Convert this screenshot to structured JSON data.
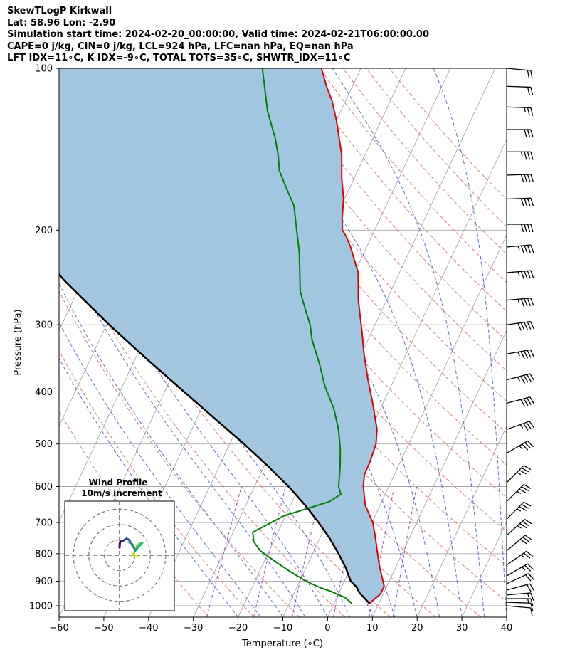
{
  "header": {
    "lines": [
      "SkewTLogP Kirkwall",
      "Lat: 58.96   Lon: -2.90",
      "Simulation start time: 2024-02-20_00:00:00, Valid time: 2024-02-21T06:00:00.00",
      "CAPE=0 j/kg, CIN=0 j/kg, LCL=924 hPa, LFC=nan hPa, EQ=nan hPa",
      "LFT IDX=11∘C, K IDX=-9∘C, TOTAL TOTS=35∘C, SHWTR_IDX=11∘C"
    ]
  },
  "chart_data": {
    "type": "line",
    "subtype": "skew-t log-p",
    "xlabel": "Temperature (∘C)",
    "ylabel": "Pressure (hPa)",
    "xlim": [
      -60,
      40
    ],
    "ylim": [
      1050,
      100
    ],
    "yscale": "log",
    "xticks": [
      -60,
      -50,
      -40,
      -30,
      -20,
      -10,
      0,
      10,
      20,
      30,
      40
    ],
    "yticks": [
      100,
      200,
      300,
      400,
      500,
      600,
      700,
      800,
      900,
      1000
    ],
    "grid": true,
    "colors": {
      "temperature": "#e00000",
      "dewpoint": "#008000",
      "parcel": "#000000",
      "cin_shade": "#a2c6e0",
      "dry_adiabat": "#f07878",
      "moist_adiabat": "#5a6cf0",
      "mixing_ratio": "#9a4cc8",
      "isotherm": "#a8a8a8"
    },
    "series": [
      {
        "role": "temperature",
        "points": [
          [
            7.9,
            990
          ],
          [
            9.4,
            950
          ],
          [
            9.4,
            920
          ],
          [
            8.6,
            900
          ],
          [
            6.5,
            850
          ],
          [
            4.5,
            800
          ],
          [
            2.5,
            750
          ],
          [
            0.2,
            700
          ],
          [
            -3.3,
            650
          ],
          [
            -5.7,
            600
          ],
          [
            -6.7,
            570
          ],
          [
            -6.8,
            540
          ],
          [
            -7.3,
            500
          ],
          [
            -8.6,
            470
          ],
          [
            -12.3,
            420
          ],
          [
            -15.8,
            380
          ],
          [
            -19.4,
            340
          ],
          [
            -22.1,
            310
          ],
          [
            -26.3,
            270
          ],
          [
            -29.2,
            240
          ],
          [
            -31.8,
            225
          ],
          [
            -33.6,
            215
          ],
          [
            -35.8,
            205
          ],
          [
            -37.2,
            200
          ],
          [
            -38.5,
            190
          ],
          [
            -40.2,
            175
          ],
          [
            -42.8,
            160
          ],
          [
            -45.2,
            145
          ],
          [
            -47.5,
            135
          ],
          [
            -50.0,
            125
          ],
          [
            -53.0,
            115
          ],
          [
            -55.8,
            108
          ],
          [
            -58.8,
            100
          ]
        ]
      },
      {
        "role": "dewpoint",
        "points": [
          [
            4.0,
            990
          ],
          [
            1.8,
            965
          ],
          [
            -2.0,
            940
          ],
          [
            -4.8,
            925
          ],
          [
            -8.6,
            900
          ],
          [
            -13.0,
            865
          ],
          [
            -17.2,
            830
          ],
          [
            -22.0,
            790
          ],
          [
            -24.4,
            760
          ],
          [
            -25.6,
            730
          ],
          [
            -20.3,
            680
          ],
          [
            -11.7,
            640
          ],
          [
            -9.9,
            620
          ],
          [
            -11.2,
            600
          ],
          [
            -13.0,
            550
          ],
          [
            -14.8,
            510
          ],
          [
            -17.2,
            470
          ],
          [
            -20.4,
            430
          ],
          [
            -24.8,
            390
          ],
          [
            -28.3,
            355
          ],
          [
            -32.5,
            320
          ],
          [
            -34.5,
            300
          ],
          [
            -37.3,
            280
          ],
          [
            -40.2,
            260
          ],
          [
            -44.5,
            220
          ],
          [
            -50.6,
            180
          ],
          [
            -53.3,
            170
          ],
          [
            -57.5,
            155
          ],
          [
            -59.4,
            145
          ],
          [
            -61.8,
            135
          ],
          [
            -66.4,
            120
          ],
          [
            -72.0,
            100
          ]
        ]
      },
      {
        "role": "parcel",
        "points": [
          [
            7.9,
            990
          ],
          [
            4.5,
            945
          ],
          [
            3.4,
            924
          ],
          [
            1.4,
            900
          ],
          [
            -1.1,
            850
          ],
          [
            -4.2,
            800
          ],
          [
            -7.7,
            750
          ],
          [
            -11.9,
            700
          ],
          [
            -16.7,
            650
          ],
          [
            -22.4,
            600
          ],
          [
            -29.1,
            550
          ],
          [
            -36.8,
            500
          ],
          [
            -45.7,
            450
          ],
          [
            -55.6,
            400
          ],
          [
            -66.8,
            350
          ],
          [
            -79.4,
            300
          ],
          [
            -93.5,
            250
          ],
          [
            -109.4,
            200
          ],
          [
            -127.1,
            150
          ],
          [
            -146.6,
            100
          ]
        ]
      }
    ],
    "wind_barbs": {
      "pressures": [
        1000,
        985,
        970,
        955,
        935,
        910,
        880,
        840,
        790,
        740,
        690,
        640,
        590,
        520,
        470,
        420,
        380,
        340,
        300,
        270,
        240,
        215,
        195,
        175,
        158,
        143,
        130,
        118,
        108,
        100
      ],
      "speeds_kt": [
        10,
        10,
        15,
        15,
        20,
        20,
        25,
        25,
        30,
        35,
        35,
        35,
        35,
        35,
        35,
        40,
        45,
        45,
        50,
        45,
        45,
        45,
        40,
        40,
        40,
        35,
        30,
        25,
        20,
        20
      ],
      "direction_deg": [
        275,
        272,
        270,
        265,
        255,
        245,
        240,
        235,
        230,
        228,
        225,
        225,
        225,
        240,
        250,
        255,
        255,
        260,
        262,
        265,
        265,
        265,
        270,
        268,
        268,
        270,
        270,
        272,
        272,
        275
      ]
    },
    "hodograph": {
      "title": "Wind Profile",
      "subtitle": "10m/s increment",
      "ring_increment_ms": 10,
      "rings": [
        10,
        20,
        30
      ],
      "range_ms": 30,
      "colormap": "viridis",
      "points": [
        [
          11.5,
          -0.6
        ],
        [
          10.8,
          -0.2
        ],
        [
          9.6,
          0.0
        ],
        [
          8.8,
          0.2
        ],
        [
          11.2,
          6.0
        ],
        [
          13.0,
          7.5
        ],
        [
          14.8,
          8.0
        ],
        [
          12.5,
          5.5
        ],
        [
          11.0,
          4.0
        ],
        [
          10.2,
          3.0
        ],
        [
          9.5,
          4.5
        ],
        [
          8.2,
          7.0
        ],
        [
          6.5,
          9.5
        ],
        [
          5.5,
          10.4
        ],
        [
          4.5,
          10.8
        ],
        [
          3.2,
          10.0
        ],
        [
          2.0,
          9.2
        ],
        [
          0.8,
          9.0
        ],
        [
          0.4,
          8.6
        ],
        [
          0.2,
          7.8
        ],
        [
          0.0,
          5.0
        ]
      ]
    }
  }
}
